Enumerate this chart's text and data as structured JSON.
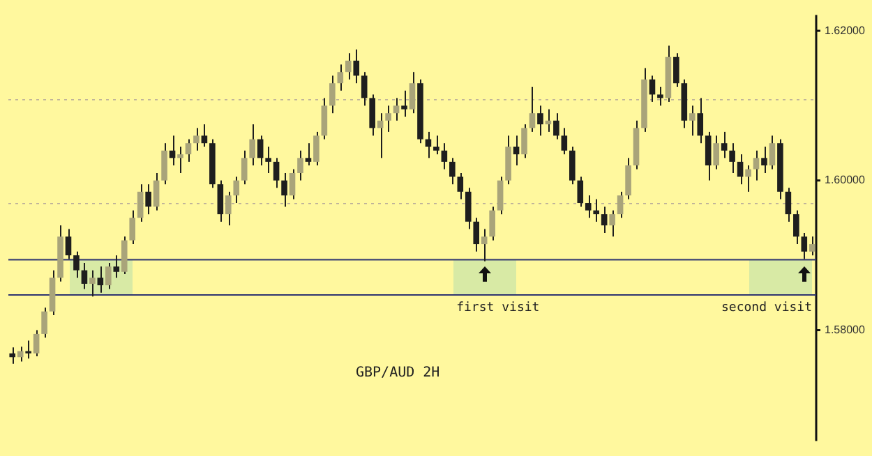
{
  "chart_data": {
    "type": "candlestick",
    "categories": [
      null,
      null,
      null,
      null,
      null,
      null,
      null,
      null,
      null,
      null,
      null,
      null,
      null,
      null,
      null,
      null,
      null,
      null,
      null,
      null,
      null,
      null,
      null,
      null,
      null,
      null,
      null,
      null,
      null,
      null,
      null,
      null,
      null,
      null,
      null,
      null,
      null,
      null,
      null,
      null,
      null,
      null,
      null,
      null,
      null,
      null,
      null,
      null,
      null,
      null,
      null,
      null,
      null,
      null,
      null,
      null,
      null,
      null,
      null,
      null,
      null,
      null,
      null,
      null,
      null,
      null,
      null,
      null,
      null,
      null,
      null,
      null,
      null,
      null,
      null,
      null,
      null,
      null,
      null,
      null,
      null,
      null,
      null,
      null,
      null,
      null,
      null,
      null,
      null,
      null,
      null,
      null,
      null,
      null,
      null,
      null,
      null,
      null,
      null,
      null,
      null
    ],
    "ohlc": [
      [
        1.5769,
        1.5777,
        1.5755,
        1.5764
      ],
      [
        1.5764,
        1.5778,
        1.5758,
        1.5772
      ],
      [
        1.5772,
        1.5786,
        1.5762,
        1.5769
      ],
      [
        1.5769,
        1.58,
        1.5765,
        1.5795
      ],
      [
        1.5795,
        1.583,
        1.579,
        1.5825
      ],
      [
        1.5825,
        1.588,
        1.582,
        1.587
      ],
      [
        1.587,
        1.594,
        1.5865,
        1.5925
      ],
      [
        1.5925,
        1.5935,
        1.5895,
        1.59
      ],
      [
        1.59,
        1.5905,
        1.587,
        1.588
      ],
      [
        1.588,
        1.589,
        1.5855,
        1.5862
      ],
      [
        1.5862,
        1.588,
        1.5845,
        1.587
      ],
      [
        1.587,
        1.5885,
        1.585,
        1.586
      ],
      [
        1.586,
        1.589,
        1.5855,
        1.5885
      ],
      [
        1.5885,
        1.59,
        1.587,
        1.5878
      ],
      [
        1.5878,
        1.5925,
        1.5875,
        1.592
      ],
      [
        1.592,
        1.596,
        1.5915,
        1.595
      ],
      [
        1.595,
        1.5995,
        1.5945,
        1.5985
      ],
      [
        1.5985,
        1.5995,
        1.5955,
        1.5965
      ],
      [
        1.5965,
        1.601,
        1.596,
        1.6
      ],
      [
        1.6,
        1.605,
        1.5995,
        1.604
      ],
      [
        1.604,
        1.606,
        1.602,
        1.603
      ],
      [
        1.603,
        1.6045,
        1.601,
        1.6035
      ],
      [
        1.6035,
        1.6055,
        1.6025,
        1.605
      ],
      [
        1.605,
        1.607,
        1.604,
        1.606
      ],
      [
        1.606,
        1.6075,
        1.6045,
        1.605
      ],
      [
        1.605,
        1.6055,
        1.599,
        1.5995
      ],
      [
        1.5995,
        1.6,
        1.5945,
        1.5955
      ],
      [
        1.5955,
        1.5985,
        1.594,
        1.598
      ],
      [
        1.598,
        1.6005,
        1.597,
        1.6
      ],
      [
        1.6,
        1.604,
        1.5995,
        1.603
      ],
      [
        1.603,
        1.6075,
        1.602,
        1.6055
      ],
      [
        1.6055,
        1.606,
        1.602,
        1.603
      ],
      [
        1.603,
        1.6045,
        1.601,
        1.6025
      ],
      [
        1.6025,
        1.603,
        1.599,
        1.6
      ],
      [
        1.6,
        1.601,
        1.5965,
        1.598
      ],
      [
        1.598,
        1.6015,
        1.5975,
        1.601
      ],
      [
        1.601,
        1.604,
        1.6,
        1.603
      ],
      [
        1.603,
        1.605,
        1.602,
        1.6025
      ],
      [
        1.6025,
        1.6065,
        1.602,
        1.606
      ],
      [
        1.606,
        1.611,
        1.6055,
        1.61
      ],
      [
        1.61,
        1.614,
        1.609,
        1.613
      ],
      [
        1.613,
        1.6155,
        1.612,
        1.6145
      ],
      [
        1.6145,
        1.617,
        1.6135,
        1.616
      ],
      [
        1.616,
        1.6175,
        1.613,
        1.614
      ],
      [
        1.614,
        1.6145,
        1.61,
        1.611
      ],
      [
        1.611,
        1.6115,
        1.606,
        1.607
      ],
      [
        1.607,
        1.609,
        1.603,
        1.608
      ],
      [
        1.608,
        1.61,
        1.6065,
        1.609
      ],
      [
        1.609,
        1.611,
        1.608,
        1.61
      ],
      [
        1.61,
        1.612,
        1.6085,
        1.6095
      ],
      [
        1.6095,
        1.6145,
        1.609,
        1.613
      ],
      [
        1.613,
        1.6135,
        1.605,
        1.6055
      ],
      [
        1.6055,
        1.6065,
        1.603,
        1.6045
      ],
      [
        1.6045,
        1.606,
        1.6035,
        1.604
      ],
      [
        1.604,
        1.605,
        1.6015,
        1.6025
      ],
      [
        1.6025,
        1.603,
        1.5995,
        1.6005
      ],
      [
        1.6005,
        1.601,
        1.5975,
        1.5985
      ],
      [
        1.5985,
        1.599,
        1.5935,
        1.5945
      ],
      [
        1.5945,
        1.595,
        1.5905,
        1.5915
      ],
      [
        1.5915,
        1.5935,
        1.5892,
        1.5925
      ],
      [
        1.5925,
        1.5965,
        1.592,
        1.596
      ],
      [
        1.596,
        1.6005,
        1.5955,
        1.6
      ],
      [
        1.6,
        1.606,
        1.5995,
        1.6045
      ],
      [
        1.6045,
        1.606,
        1.602,
        1.6035
      ],
      [
        1.6035,
        1.6075,
        1.603,
        1.607
      ],
      [
        1.607,
        1.6125,
        1.6065,
        1.609
      ],
      [
        1.609,
        1.61,
        1.606,
        1.6075
      ],
      [
        1.6075,
        1.6095,
        1.6065,
        1.608
      ],
      [
        1.608,
        1.609,
        1.6055,
        1.606
      ],
      [
        1.606,
        1.607,
        1.6035,
        1.604
      ],
      [
        1.604,
        1.6045,
        1.5995,
        1.6
      ],
      [
        1.6,
        1.6005,
        1.5965,
        1.597
      ],
      [
        1.597,
        1.598,
        1.595,
        1.596
      ],
      [
        1.596,
        1.5975,
        1.5945,
        1.5955
      ],
      [
        1.5955,
        1.5965,
        1.593,
        1.594
      ],
      [
        1.594,
        1.596,
        1.5925,
        1.5955
      ],
      [
        1.5955,
        1.5985,
        1.595,
        1.598
      ],
      [
        1.598,
        1.603,
        1.5975,
        1.602
      ],
      [
        1.602,
        1.608,
        1.6015,
        1.607
      ],
      [
        1.607,
        1.615,
        1.6065,
        1.6135
      ],
      [
        1.6135,
        1.614,
        1.6105,
        1.6115
      ],
      [
        1.6115,
        1.6125,
        1.61,
        1.611
      ],
      [
        1.611,
        1.618,
        1.6105,
        1.6165
      ],
      [
        1.6165,
        1.617,
        1.6125,
        1.613
      ],
      [
        1.613,
        1.6135,
        1.607,
        1.608
      ],
      [
        1.608,
        1.61,
        1.606,
        1.609
      ],
      [
        1.609,
        1.611,
        1.605,
        1.606
      ],
      [
        1.606,
        1.6065,
        1.6,
        1.602
      ],
      [
        1.602,
        1.606,
        1.6015,
        1.605
      ],
      [
        1.605,
        1.6065,
        1.603,
        1.604
      ],
      [
        1.604,
        1.605,
        1.601,
        1.6025
      ],
      [
        1.6025,
        1.6035,
        1.5995,
        1.6005
      ],
      [
        1.6005,
        1.602,
        1.5985,
        1.6015
      ],
      [
        1.6015,
        1.604,
        1.6,
        1.603
      ],
      [
        1.603,
        1.6045,
        1.601,
        1.602
      ],
      [
        1.602,
        1.606,
        1.6015,
        1.605
      ],
      [
        1.605,
        1.6055,
        1.5975,
        1.5985
      ],
      [
        1.5985,
        1.599,
        1.5945,
        1.5955
      ],
      [
        1.5955,
        1.596,
        1.5915,
        1.5925
      ],
      [
        1.5925,
        1.593,
        1.5895,
        1.5905
      ],
      [
        1.5905,
        1.5925,
        1.59,
        1.5915
      ]
    ],
    "ylim": [
      1.5652,
      1.6221
    ],
    "yticks": [
      {
        "value": 1.58,
        "label": "1.58000"
      },
      {
        "value": 1.6,
        "label": "1.60000"
      },
      {
        "value": 1.62,
        "label": "1.62000"
      }
    ],
    "tick_labels": "y",
    "grid": false,
    "legend": false,
    "ref_lines": [
      {
        "axis": "y",
        "value": 1.6108,
        "color": "#c0b49a",
        "line_style": "dotted"
      },
      {
        "axis": "y",
        "value": 1.5969,
        "color": "#c0b49a",
        "line_style": "dotted"
      },
      {
        "axis": "y",
        "value": 1.5894,
        "color": "#2e3470",
        "line_style": "solid"
      },
      {
        "axis": "y",
        "value": 1.5847,
        "color": "#2e3470",
        "line_style": "solid"
      }
    ],
    "annotations": [
      "first visit",
      "second visit",
      "GBP/AUD 2H"
    ]
  }
}
